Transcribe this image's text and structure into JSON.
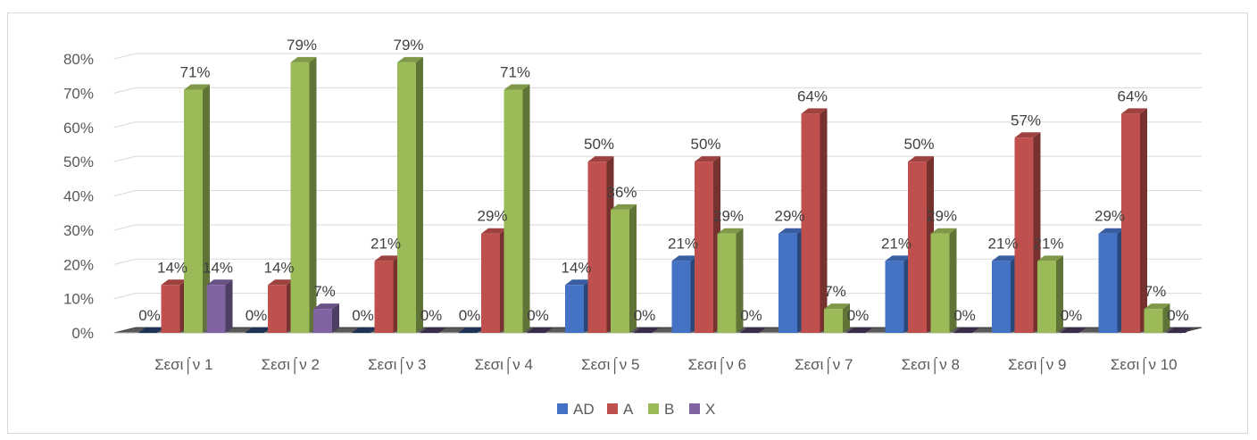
{
  "chart_data": {
    "type": "bar",
    "categories": [
      "Σεσι⌠ν 1",
      "Σεσι⌠ν 2",
      "Σεσι⌠ν 3",
      "Σεσι⌠ν 4",
      "Σεσι⌠ν 5",
      "Σεσι⌠ν 6",
      "Σεσι⌠ν 7",
      "Σεσι⌠ν 8",
      "Σεσι⌠ν 9",
      "Σεσι⌠ν 10"
    ],
    "series": [
      {
        "name": "AD",
        "color": "#4472c4",
        "values": [
          0,
          0,
          0,
          0,
          14,
          21,
          29,
          21,
          21,
          29
        ]
      },
      {
        "name": "A",
        "color": "#c0504d",
        "values": [
          14,
          14,
          21,
          29,
          50,
          50,
          64,
          50,
          57,
          64
        ]
      },
      {
        "name": "B",
        "color": "#9bbb59",
        "values": [
          71,
          79,
          79,
          71,
          36,
          29,
          7,
          29,
          21,
          7
        ]
      },
      {
        "name": "X",
        "color": "#8064a2",
        "values": [
          14,
          7,
          0,
          0,
          0,
          0,
          0,
          0,
          0,
          0
        ]
      }
    ],
    "value_format": "percent",
    "ylim": [
      0,
      80
    ],
    "yticks": [
      "0%",
      "10%",
      "20%",
      "30%",
      "40%",
      "50%",
      "60%",
      "70%",
      "80%"
    ],
    "grid": true,
    "legend": "bottom",
    "style": "3d-clustered-column"
  }
}
